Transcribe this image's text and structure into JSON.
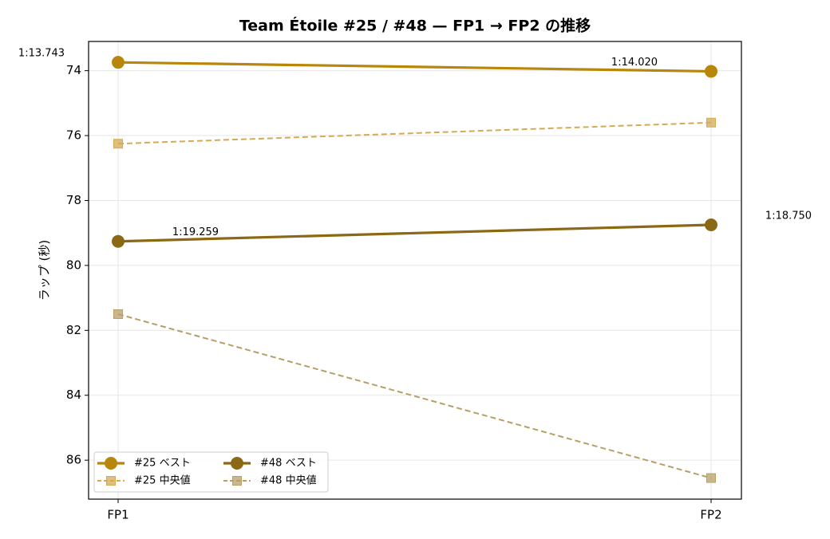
{
  "chart_data": {
    "type": "line",
    "title": "Team Étoile #25 / #48 — FP1 → FP2 の推移",
    "y_label": "ラップ (秒)",
    "categories": [
      "FP1",
      "FP2"
    ],
    "ylim": [
      87.2,
      73.1
    ],
    "yticks": [
      74,
      76,
      78,
      80,
      82,
      84,
      86
    ],
    "grid": true,
    "legend": "lower left",
    "series": [
      {
        "name": "#25 ベスト",
        "color": "#b8860b",
        "style": "solid",
        "marker": "circle",
        "values": [
          73.743,
          74.02
        ],
        "value_labels": [
          "1:13.743",
          "1:14.020"
        ]
      },
      {
        "name": "#25 中央値",
        "color": "#d4aa55",
        "style": "dashed",
        "marker": "square",
        "values": [
          76.25,
          75.6
        ]
      },
      {
        "name": "#48 ベスト",
        "color": "#8b6914",
        "style": "solid",
        "marker": "circle",
        "values": [
          79.259,
          78.75
        ],
        "value_labels": [
          "1:19.259",
          "1:18.750"
        ]
      },
      {
        "name": "#48 中央値",
        "color": "#b89f68",
        "style": "dashed",
        "marker": "square",
        "values": [
          81.5,
          86.55
        ]
      }
    ]
  }
}
